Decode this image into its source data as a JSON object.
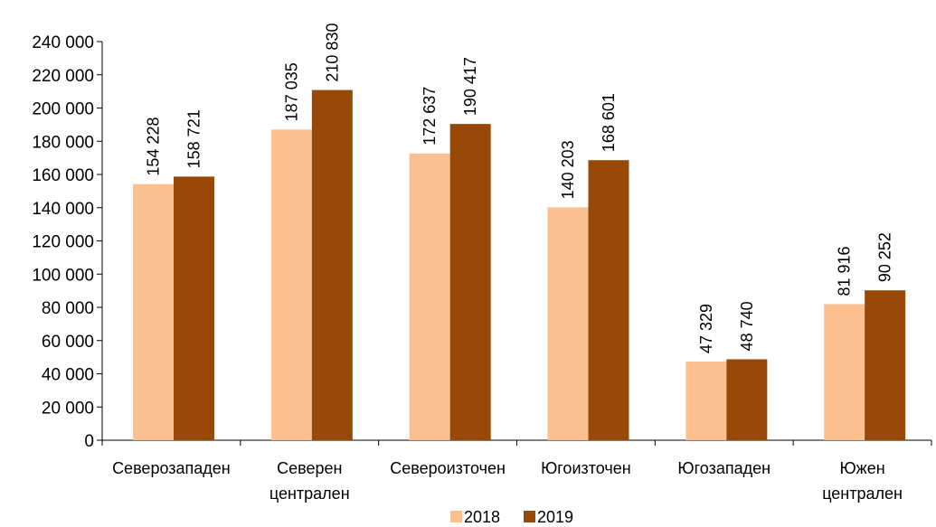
{
  "chart_data": {
    "type": "bar",
    "categories": [
      [
        "Северозападен"
      ],
      [
        "Северен",
        "централен"
      ],
      [
        "Североизточен"
      ],
      [
        "Югоизточен"
      ],
      [
        "Югозападен"
      ],
      [
        "Южен",
        "централен"
      ]
    ],
    "series": [
      {
        "name": "2018",
        "color": "#FAC090",
        "values": [
          154228,
          187035,
          172637,
          140203,
          47329,
          81916
        ],
        "labels": [
          "154 228",
          "187 035",
          "172 637",
          "140 203",
          "47 329",
          "81 916"
        ]
      },
      {
        "name": "2019",
        "color": "#984807",
        "values": [
          158721,
          210830,
          190417,
          168601,
          48740,
          90252
        ],
        "labels": [
          "158 721",
          "210 830",
          "190 417",
          "168 601",
          "48 740",
          "90 252"
        ]
      }
    ],
    "yticks": [
      0,
      20000,
      40000,
      60000,
      80000,
      100000,
      120000,
      140000,
      160000,
      180000,
      200000,
      220000,
      240000
    ],
    "ytick_labels": [
      "0",
      "20 000",
      "40 000",
      "60 000",
      "80 000",
      "100 000",
      "120 000",
      "140 000",
      "160 000",
      "180 000",
      "200 000",
      "220 000",
      "240 000"
    ],
    "ylim": [
      0,
      240000
    ],
    "grid": false,
    "legend_position": "bottom-center",
    "title": "",
    "xlabel": "",
    "ylabel": ""
  }
}
